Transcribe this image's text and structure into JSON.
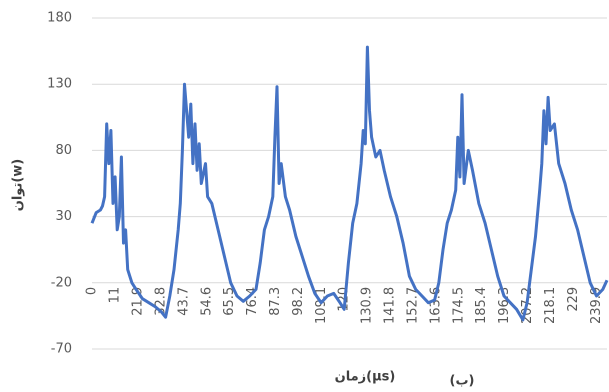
{
  "chart_data": {
    "type": "line",
    "y_title": "توان(w)",
    "x_title": "زمان(µs)",
    "annotation": "(ب)",
    "color": "#4472c4",
    "grid": true,
    "x": [
      0,
      2,
      4,
      5,
      6,
      7,
      8,
      9,
      10,
      11,
      12,
      13,
      14,
      15,
      16,
      17,
      19,
      21,
      24,
      27,
      30,
      33,
      35,
      37,
      39,
      41,
      42,
      43,
      44,
      45,
      46,
      47,
      48,
      49,
      50,
      51,
      52,
      54,
      55,
      57,
      60,
      63,
      66,
      69,
      72,
      75,
      78,
      80,
      82,
      84,
      86,
      87,
      88,
      89,
      90,
      92,
      94,
      97,
      100,
      103,
      106,
      109,
      112,
      115,
      118,
      120,
      122,
      124,
      126,
      128,
      129,
      130,
      131,
      132,
      133,
      135,
      137,
      139,
      142,
      145,
      148,
      151,
      154,
      157,
      160,
      163,
      165,
      167,
      169,
      171,
      173,
      174,
      175,
      176,
      177,
      179,
      181,
      184,
      187,
      190,
      193,
      196,
      199,
      202,
      205,
      207,
      209,
      211,
      213,
      214,
      215,
      216,
      217,
      218,
      220,
      222,
      225,
      228,
      231,
      234,
      237,
      240,
      243,
      245
    ],
    "values": [
      25,
      33,
      35,
      38,
      45,
      100,
      70,
      95,
      40,
      60,
      20,
      30,
      75,
      10,
      20,
      -10,
      -20,
      -25,
      -32,
      -35,
      -38,
      -42,
      -46,
      -30,
      -10,
      20,
      40,
      80,
      130,
      110,
      90,
      115,
      70,
      100,
      65,
      85,
      55,
      70,
      45,
      40,
      20,
      0,
      -20,
      -30,
      -34,
      -30,
      -25,
      -5,
      20,
      30,
      45,
      90,
      128,
      55,
      70,
      45,
      35,
      15,
      0,
      -15,
      -28,
      -35,
      -30,
      -28,
      -35,
      -40,
      -5,
      25,
      40,
      70,
      95,
      85,
      158,
      110,
      90,
      75,
      80,
      65,
      45,
      30,
      10,
      -15,
      -25,
      -30,
      -35,
      -33,
      -20,
      5,
      25,
      35,
      50,
      90,
      60,
      122,
      55,
      80,
      65,
      40,
      25,
      5,
      -15,
      -30,
      -35,
      -40,
      -48,
      -35,
      -10,
      15,
      50,
      70,
      110,
      85,
      120,
      95,
      100,
      70,
      55,
      35,
      20,
      0,
      -20,
      -30,
      -25,
      -18
    ],
    "xlim": [
      0,
      245
    ],
    "xticks": [
      0,
      11,
      21.9,
      32.8,
      43.7,
      54.6,
      65.5,
      76.4,
      87.3,
      98.2,
      109.1,
      120,
      130.9,
      141.8,
      152.7,
      163.6,
      174.5,
      185.4,
      196.3,
      207.2,
      218.1,
      229,
      239.9
    ],
    "ylim": [
      -70,
      180
    ],
    "yticks": [
      -70,
      -20,
      30,
      80,
      130,
      180
    ]
  }
}
